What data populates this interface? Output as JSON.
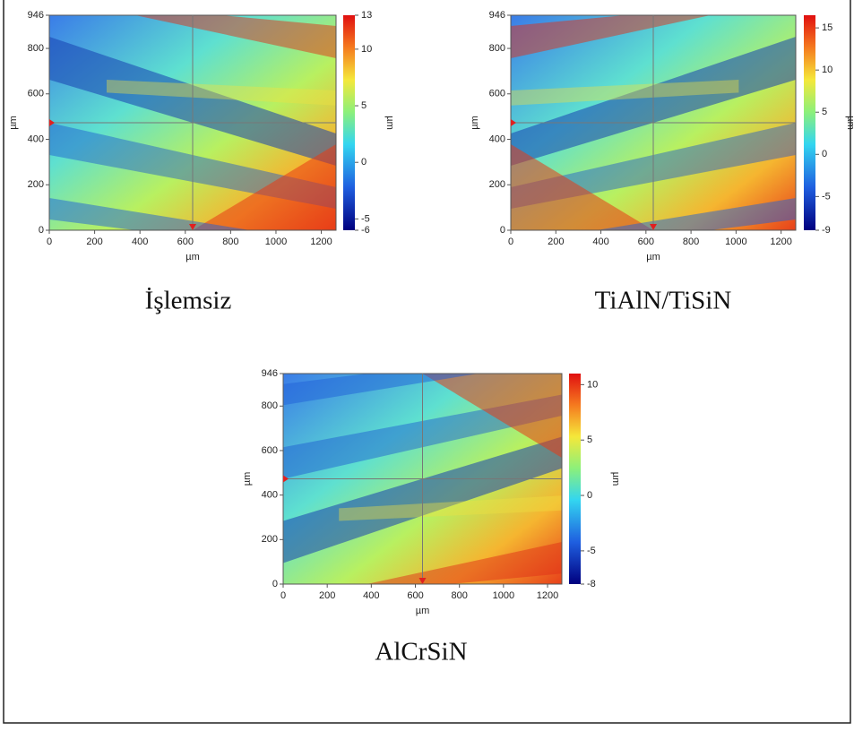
{
  "panels": [
    {
      "caption": "İşlemsiz",
      "x_label": "µm",
      "y_label": "µm",
      "colorbar_label": "µm",
      "xlim": [
        0,
        1265
      ],
      "ylim": [
        0,
        946
      ],
      "xticks": [
        0,
        200,
        400,
        600,
        800,
        1000,
        1200
      ],
      "yticks": [
        0,
        200,
        400,
        600,
        800,
        946
      ],
      "clim": [
        -6,
        13
      ],
      "colorbar_ticks": [
        -6,
        -5,
        0,
        5,
        10,
        13
      ]
    },
    {
      "caption": "TiAlN/TiSiN",
      "x_label": "µm",
      "y_label": "µm",
      "colorbar_label": "µm",
      "xlim": [
        0,
        1265
      ],
      "ylim": [
        0,
        946
      ],
      "xticks": [
        0,
        200,
        400,
        600,
        800,
        1000,
        1200
      ],
      "yticks": [
        0,
        200,
        400,
        600,
        800,
        946
      ],
      "clim": [
        -9,
        16.5
      ],
      "colorbar_ticks": [
        -9,
        -5,
        0,
        5,
        10,
        15
      ]
    },
    {
      "caption": "AlCrSiN",
      "x_label": "µm",
      "y_label": "µm",
      "colorbar_label": "µm",
      "xlim": [
        0,
        1265
      ],
      "ylim": [
        0,
        946
      ],
      "xticks": [
        0,
        200,
        400,
        600,
        800,
        1000,
        1200
      ],
      "yticks": [
        0,
        200,
        400,
        600,
        800,
        946
      ],
      "clim": [
        -8,
        11
      ],
      "colorbar_ticks": [
        -8,
        -5,
        0,
        5,
        10
      ]
    }
  ]
}
